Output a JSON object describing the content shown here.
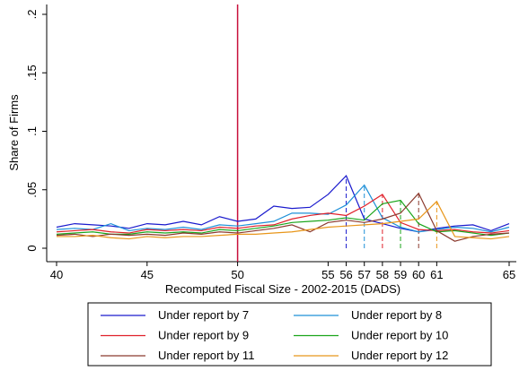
{
  "chart_data": {
    "type": "line",
    "x_label": "Recomputed Fiscal Size - 2002-2015 (DADS)",
    "y_label": "Share of Firms",
    "x": [
      40,
      41,
      42,
      43,
      44,
      45,
      46,
      47,
      48,
      49,
      50,
      51,
      52,
      53,
      54,
      55,
      56,
      57,
      58,
      59,
      60,
      61,
      62,
      63,
      64,
      65
    ],
    "xlim": [
      40,
      65
    ],
    "xticks": [
      40,
      45,
      50,
      55,
      56,
      57,
      58,
      59,
      60,
      61,
      65
    ],
    "ylim": [
      0,
      0.2
    ],
    "yticks": [
      0,
      {
        "value": 0.05,
        "label": ".05"
      },
      {
        "value": 0.1,
        "label": ".1"
      },
      {
        "value": 0.15,
        "label": ".15"
      },
      {
        "value": 0.2,
        "label": ".2"
      }
    ],
    "reference_x": 50,
    "reference_color": "#c8103c",
    "series": [
      {
        "name": "Under report by 7",
        "color": "#1a1acd",
        "threshold": 56,
        "values": [
          0.018,
          0.021,
          0.02,
          0.019,
          0.017,
          0.021,
          0.02,
          0.023,
          0.02,
          0.027,
          0.023,
          0.025,
          0.036,
          0.034,
          0.035,
          0.046,
          0.062,
          0.025,
          0.021,
          0.017,
          0.014,
          0.017,
          0.019,
          0.02,
          0.015,
          0.021
        ]
      },
      {
        "name": "Under report by 8",
        "color": "#1e90d8",
        "threshold": 57,
        "values": [
          0.016,
          0.017,
          0.016,
          0.021,
          0.015,
          0.017,
          0.016,
          0.018,
          0.016,
          0.02,
          0.019,
          0.021,
          0.023,
          0.03,
          0.03,
          0.029,
          0.037,
          0.054,
          0.026,
          0.018,
          0.014,
          0.016,
          0.018,
          0.017,
          0.014,
          0.018
        ]
      },
      {
        "name": "Under report by 9",
        "color": "#e0202a",
        "threshold": 58,
        "values": [
          0.014,
          0.015,
          0.016,
          0.014,
          0.013,
          0.016,
          0.015,
          0.016,
          0.015,
          0.018,
          0.017,
          0.019,
          0.02,
          0.025,
          0.028,
          0.03,
          0.028,
          0.036,
          0.046,
          0.022,
          0.016,
          0.015,
          0.016,
          0.014,
          0.013,
          0.015
        ]
      },
      {
        "name": "Under report by 10",
        "color": "#1aa51a",
        "threshold": 59,
        "values": [
          0.012,
          0.013,
          0.014,
          0.012,
          0.012,
          0.014,
          0.013,
          0.014,
          0.013,
          0.016,
          0.015,
          0.017,
          0.019,
          0.022,
          0.023,
          0.024,
          0.026,
          0.024,
          0.038,
          0.041,
          0.021,
          0.014,
          0.015,
          0.013,
          0.011,
          0.013
        ]
      },
      {
        "name": "Under report by 11",
        "color": "#8b3a2e",
        "threshold": 60,
        "values": [
          0.011,
          0.012,
          0.01,
          0.012,
          0.011,
          0.012,
          0.011,
          0.013,
          0.012,
          0.014,
          0.013,
          0.015,
          0.017,
          0.02,
          0.014,
          0.022,
          0.024,
          0.022,
          0.025,
          0.03,
          0.047,
          0.015,
          0.006,
          0.01,
          0.012,
          0.013
        ]
      },
      {
        "name": "Under report by 12",
        "color": "#e8961a",
        "threshold": 61,
        "values": [
          0.01,
          0.01,
          0.011,
          0.009,
          0.008,
          0.01,
          0.009,
          0.01,
          0.01,
          0.011,
          0.012,
          0.012,
          0.013,
          0.014,
          0.016,
          0.018,
          0.019,
          0.02,
          0.021,
          0.023,
          0.025,
          0.04,
          0.01,
          0.009,
          0.008,
          0.01
        ]
      }
    ]
  }
}
